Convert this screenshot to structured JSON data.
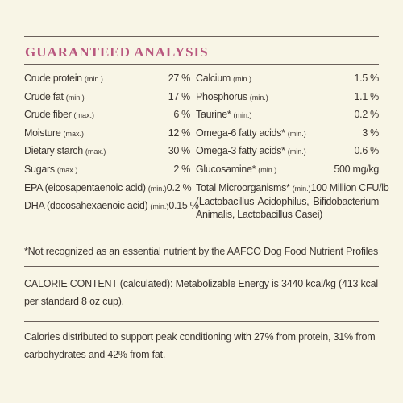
{
  "title": "GUARANTEED ANALYSIS",
  "left": [
    {
      "name": "Crude protein",
      "qualifier": "(min.)",
      "value": "27 %"
    },
    {
      "name": "Crude fat",
      "qualifier": "(min.)",
      "value": "17 %"
    },
    {
      "name": "Crude fiber",
      "qualifier": "(max.)",
      "value": "6 %"
    },
    {
      "name": "Moisture",
      "qualifier": "(max.)",
      "value": "12 %"
    },
    {
      "name": "Dietary starch",
      "qualifier": "(max.)",
      "value": "30 %"
    },
    {
      "name": "Sugars",
      "qualifier": "(max.)",
      "value": "2 %"
    },
    {
      "name": "EPA (eicosapentaenoic acid)",
      "qualifier": "(min.)",
      "value": "0.2 %"
    },
    {
      "name": "DHA (docosahexaenoic acid)",
      "qualifier": "(min.)",
      "value": "0.15 %"
    }
  ],
  "right": [
    {
      "name": "Calcium",
      "qualifier": "(min.)",
      "value": "1.5 %"
    },
    {
      "name": "Phosphorus",
      "qualifier": "(min.)",
      "value": "1.1 %"
    },
    {
      "name": "Taurine*",
      "qualifier": "(min.)",
      "value": "0.2 %"
    },
    {
      "name": "Omega-6 fatty acids*",
      "qualifier": "(min.)",
      "value": "3 %"
    },
    {
      "name": "Omega-3 fatty acids*",
      "qualifier": "(min.)",
      "value": "0.6 %"
    },
    {
      "name": "Glucosamine*",
      "qualifier": "(min.)",
      "value": "500 mg/kg"
    },
    {
      "name": "Total Microorganisms*",
      "qualifier": "(min.)",
      "value": "100 Million CFU/lb",
      "detail": "(Lactobacillus Acidophilus, Bifidobacterium Animalis, Lactobacillus Casei)"
    }
  ],
  "footnote": "*Not recognized as an essential nutrient by the AAFCO Dog Food Nutrient Profiles",
  "calorie_content": "CALORIE CONTENT (calculated): Metabolizable Energy is 3440 kcal/kg (413 kcal per standard 8 oz cup).",
  "calorie_distribution": "Calories distributed to support peak conditioning with 27% from protein, 31% from carbohydrates and 42% from fat."
}
